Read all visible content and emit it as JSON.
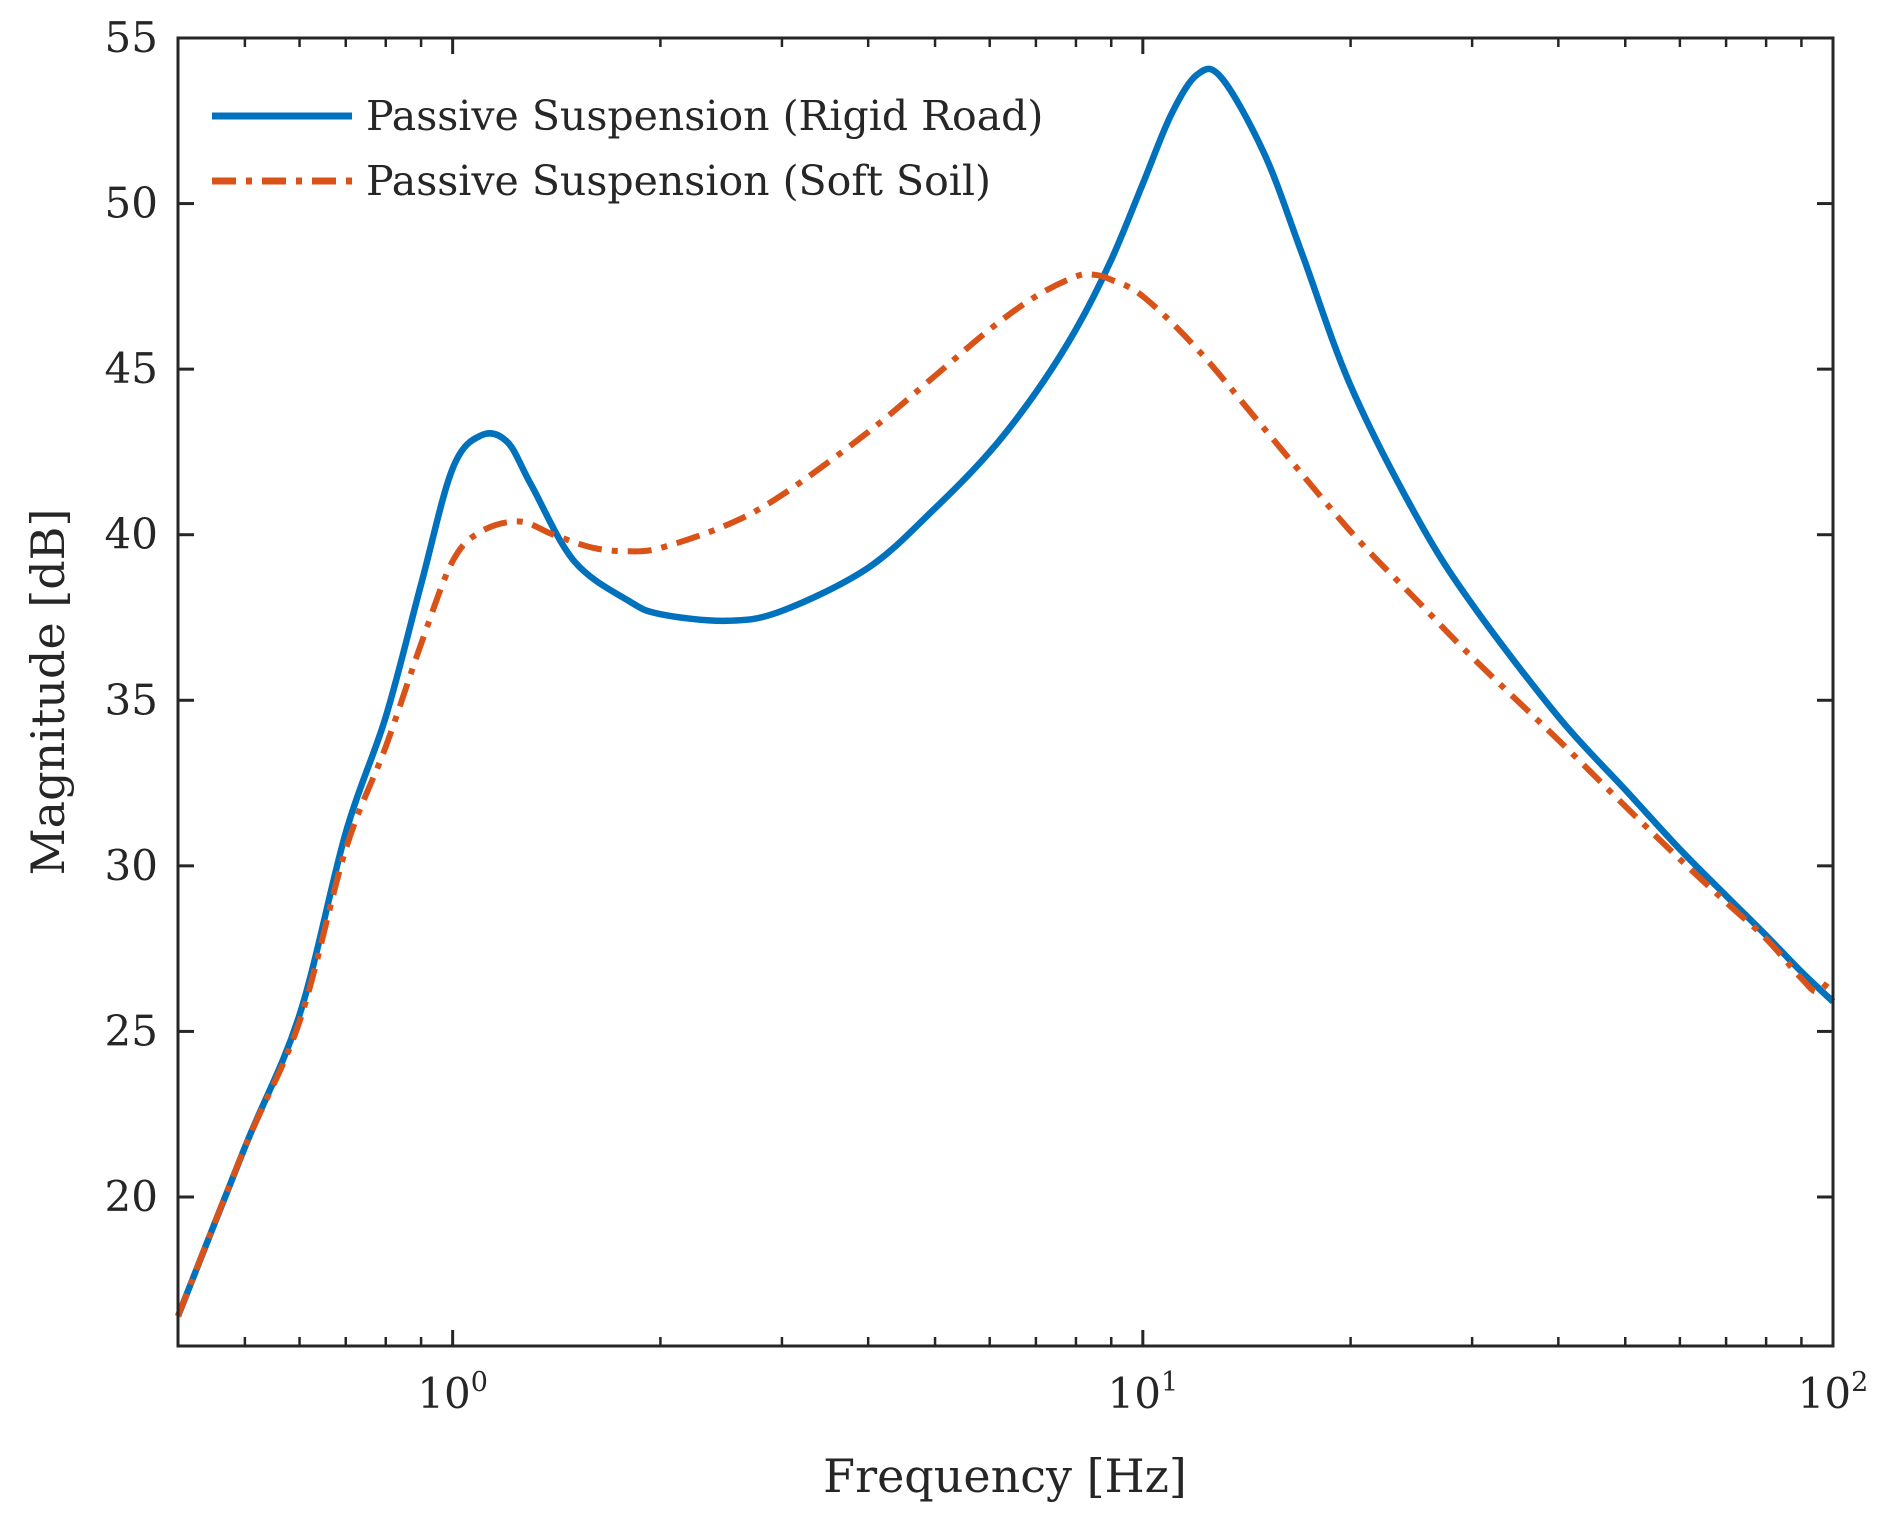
{
  "chart_data": {
    "type": "line",
    "title": "",
    "xlabel": "Frequency [Hz]",
    "ylabel": "Magnitude [dB]",
    "xscale": "log",
    "xlim": [
      0.4,
      100
    ],
    "ylim": [
      15.5,
      55
    ],
    "grid": false,
    "legend_position": "top-left",
    "x_ticks": [
      {
        "base": "10",
        "exp": "0",
        "value": 1
      },
      {
        "base": "10",
        "exp": "1",
        "value": 10
      },
      {
        "base": "10",
        "exp": "2",
        "value": 100
      }
    ],
    "y_ticks": [
      {
        "value": 20,
        "label": "20"
      },
      {
        "value": 25,
        "label": "25"
      },
      {
        "value": 30,
        "label": "30"
      },
      {
        "value": 35,
        "label": "35"
      },
      {
        "value": 40,
        "label": "40"
      },
      {
        "value": 45,
        "label": "45"
      },
      {
        "value": 50,
        "label": "50"
      },
      {
        "value": 55,
        "label": "55"
      }
    ],
    "series": [
      {
        "name": "Passive Suspension (Rigid Road)",
        "color": "#0072BD",
        "style": "solid",
        "x": [
          0.4,
          0.5,
          0.6,
          0.7,
          0.8,
          0.9,
          1.0,
          1.1,
          1.2,
          1.3,
          1.5,
          1.8,
          2.0,
          2.5,
          3.0,
          4.0,
          5.0,
          6.0,
          7.0,
          8.0,
          9.0,
          10.0,
          11.0,
          12.0,
          13.0,
          15.0,
          17.0,
          20.0,
          25.0,
          30.0,
          40.0,
          50.0,
          60.0,
          70.0,
          80.0,
          90.0,
          100.0
        ],
        "y": [
          16.4,
          21.5,
          25.5,
          31.0,
          34.5,
          38.5,
          42.0,
          43.0,
          42.8,
          41.5,
          39.2,
          38.0,
          37.6,
          37.4,
          37.7,
          39.0,
          40.8,
          42.5,
          44.3,
          46.2,
          48.3,
          50.6,
          52.7,
          53.9,
          53.8,
          51.5,
          48.5,
          44.5,
          40.5,
          37.9,
          34.5,
          32.3,
          30.5,
          29.1,
          27.9,
          26.8,
          25.9
        ]
      },
      {
        "name": "Passive Suspension (Soft Soil)",
        "color": "#D95319",
        "style": "dashdot",
        "x": [
          0.4,
          0.5,
          0.6,
          0.7,
          0.8,
          0.9,
          1.0,
          1.1,
          1.25,
          1.4,
          1.6,
          1.8,
          2.0,
          2.5,
          3.0,
          4.0,
          5.0,
          6.0,
          7.0,
          8.0,
          8.5,
          9.0,
          10.0,
          12.0,
          15.0,
          20.0,
          25.0,
          30.0,
          40.0,
          50.0,
          60.0,
          70.0,
          80.0,
          90.0,
          95.0,
          100.0
        ],
        "y": [
          16.4,
          21.5,
          25.3,
          30.5,
          33.6,
          36.7,
          39.2,
          40.1,
          40.4,
          40.0,
          39.6,
          39.5,
          39.6,
          40.3,
          41.2,
          43.1,
          44.8,
          46.2,
          47.2,
          47.8,
          47.85,
          47.7,
          47.2,
          45.6,
          43.2,
          40.1,
          38.0,
          36.3,
          33.8,
          31.8,
          30.2,
          28.9,
          27.8,
          26.6,
          26.2,
          26.7
        ]
      }
    ]
  }
}
